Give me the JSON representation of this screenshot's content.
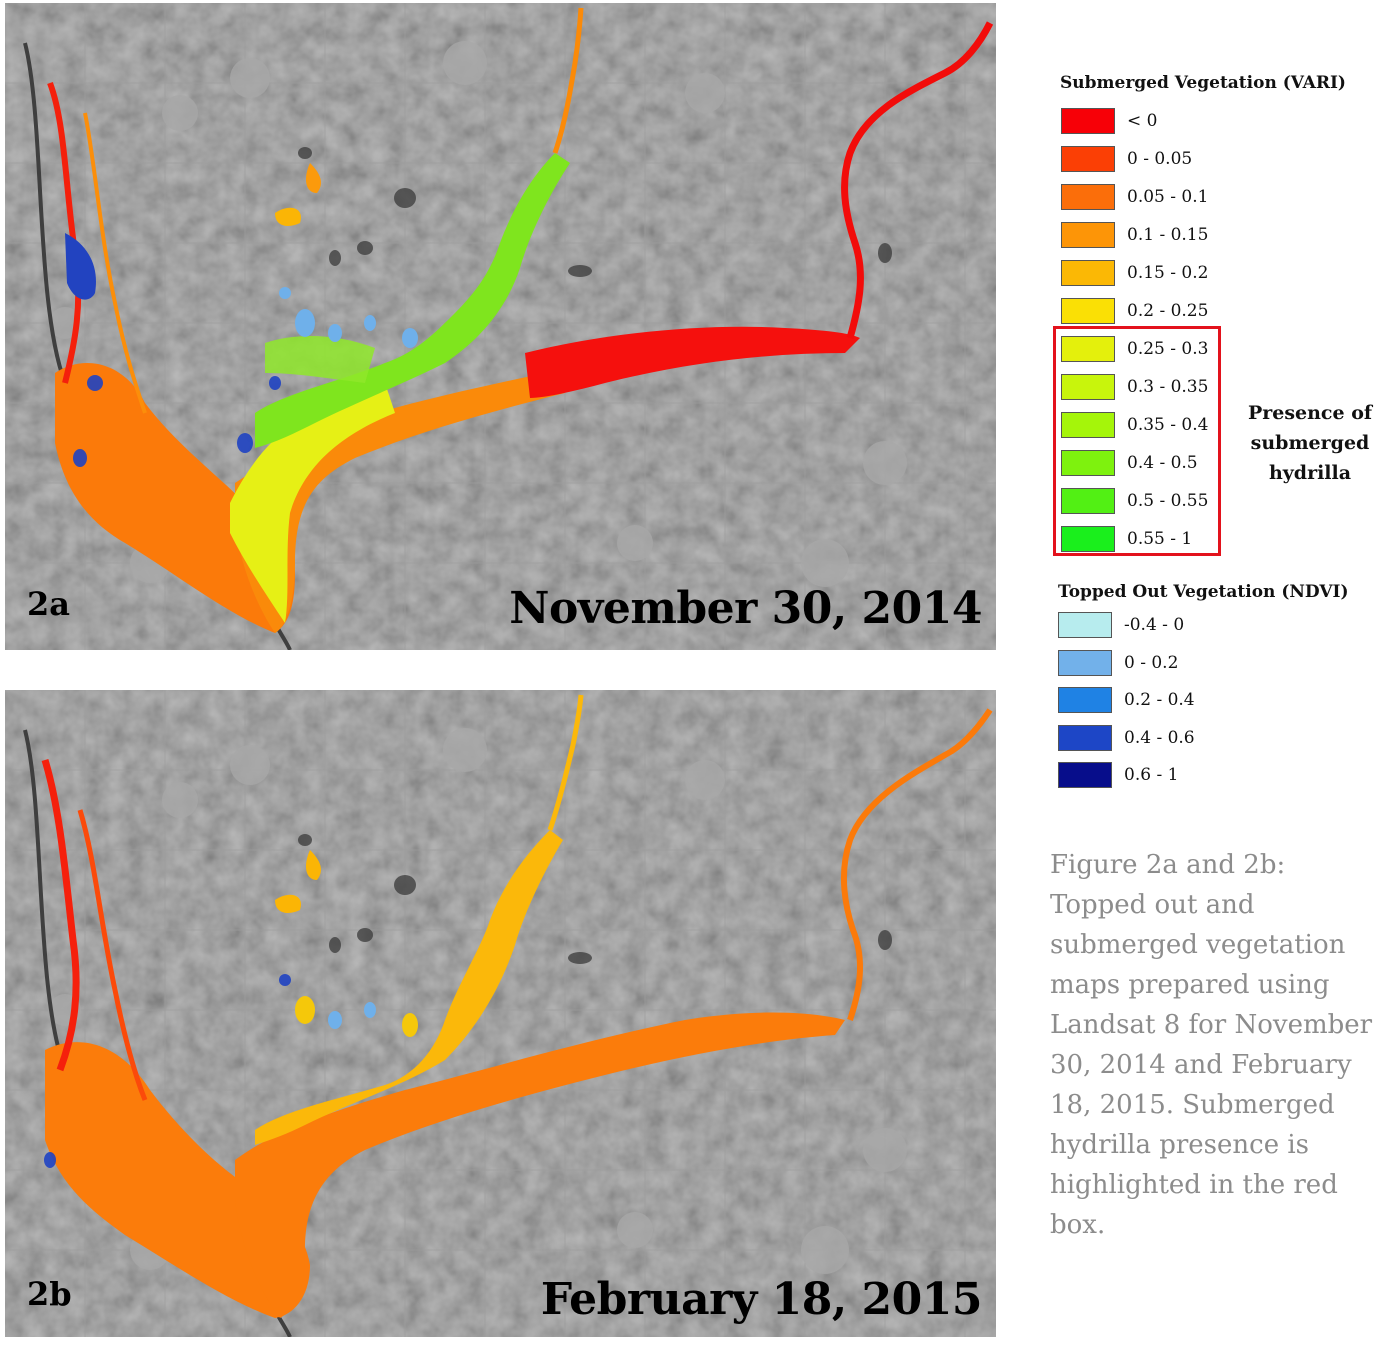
{
  "panels": [
    {
      "id": "2a",
      "date": "November 30, 2014"
    },
    {
      "id": "2b",
      "date": "February 18, 2015"
    }
  ],
  "legend_vari": {
    "title": "Submerged Vegetation (VARI)",
    "classes": [
      {
        "label": "< 0",
        "color": "#f70007"
      },
      {
        "label": "0 - 0.05",
        "color": "#fb3f05"
      },
      {
        "label": "0.05 - 0.1",
        "color": "#fb6e0a"
      },
      {
        "label": "0.1 - 0.15",
        "color": "#fd9507"
      },
      {
        "label": "0.15 - 0.2",
        "color": "#fbb805"
      },
      {
        "label": "0.2 - 0.25",
        "color": "#fae005"
      },
      {
        "label": "0.25 - 0.3",
        "color": "#e4f00c"
      },
      {
        "label": "0.3 - 0.35",
        "color": "#c8f50c"
      },
      {
        "label": "0.35 - 0.4",
        "color": "#a5f50a"
      },
      {
        "label": "0.4 - 0.5",
        "color": "#7ef20e"
      },
      {
        "label": "0.5 - 0.55",
        "color": "#52f014"
      },
      {
        "label": "0.55 - 1",
        "color": "#1aef1c"
      }
    ]
  },
  "legend_ndvi": {
    "title": "Topped Out Vegetation (NDVI)",
    "classes": [
      {
        "label": "-0.4 - 0",
        "color": "#b7ecee"
      },
      {
        "label": "0 - 0.2",
        "color": "#72b1ea"
      },
      {
        "label": "0.2 - 0.4",
        "color": "#1f82e4"
      },
      {
        "label": "0.4 - 0.6",
        "color": "#1d46c6"
      },
      {
        "label": "0.6 - 1",
        "color": "#070d8b"
      }
    ]
  },
  "hydrilla_note": "Presence of submerged hydrilla",
  "caption": "Figure 2a and 2b: Topped out and submerged vegetation maps  prepared using Landsat 8 for November 30, 2014 and February 18, 2015. Submerged hydrilla presence is highlighted in the red box."
}
